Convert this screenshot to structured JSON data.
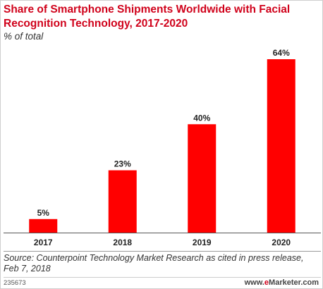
{
  "chart_data": {
    "type": "bar",
    "title": "Share of Smartphone Shipments Worldwide with Facial Recognition Technology, 2017-2020",
    "subtitle": "% of total",
    "categories": [
      "2017",
      "2018",
      "2019",
      "2020"
    ],
    "values": [
      5,
      23,
      40,
      64
    ],
    "value_labels": [
      "5%",
      "23%",
      "40%",
      "64%"
    ],
    "ylim": [
      0,
      64
    ],
    "xlabel": "",
    "ylabel": "",
    "bar_color": "#ff0000",
    "grid": false
  },
  "source": "Source: Counterpoint Technology Market Research as cited in press release, Feb 7, 2018",
  "footer": {
    "chart_id": "235673",
    "brand_prefix": "www.",
    "brand_e": "e",
    "brand_name": "Marketer",
    "brand_domain": ".com"
  }
}
